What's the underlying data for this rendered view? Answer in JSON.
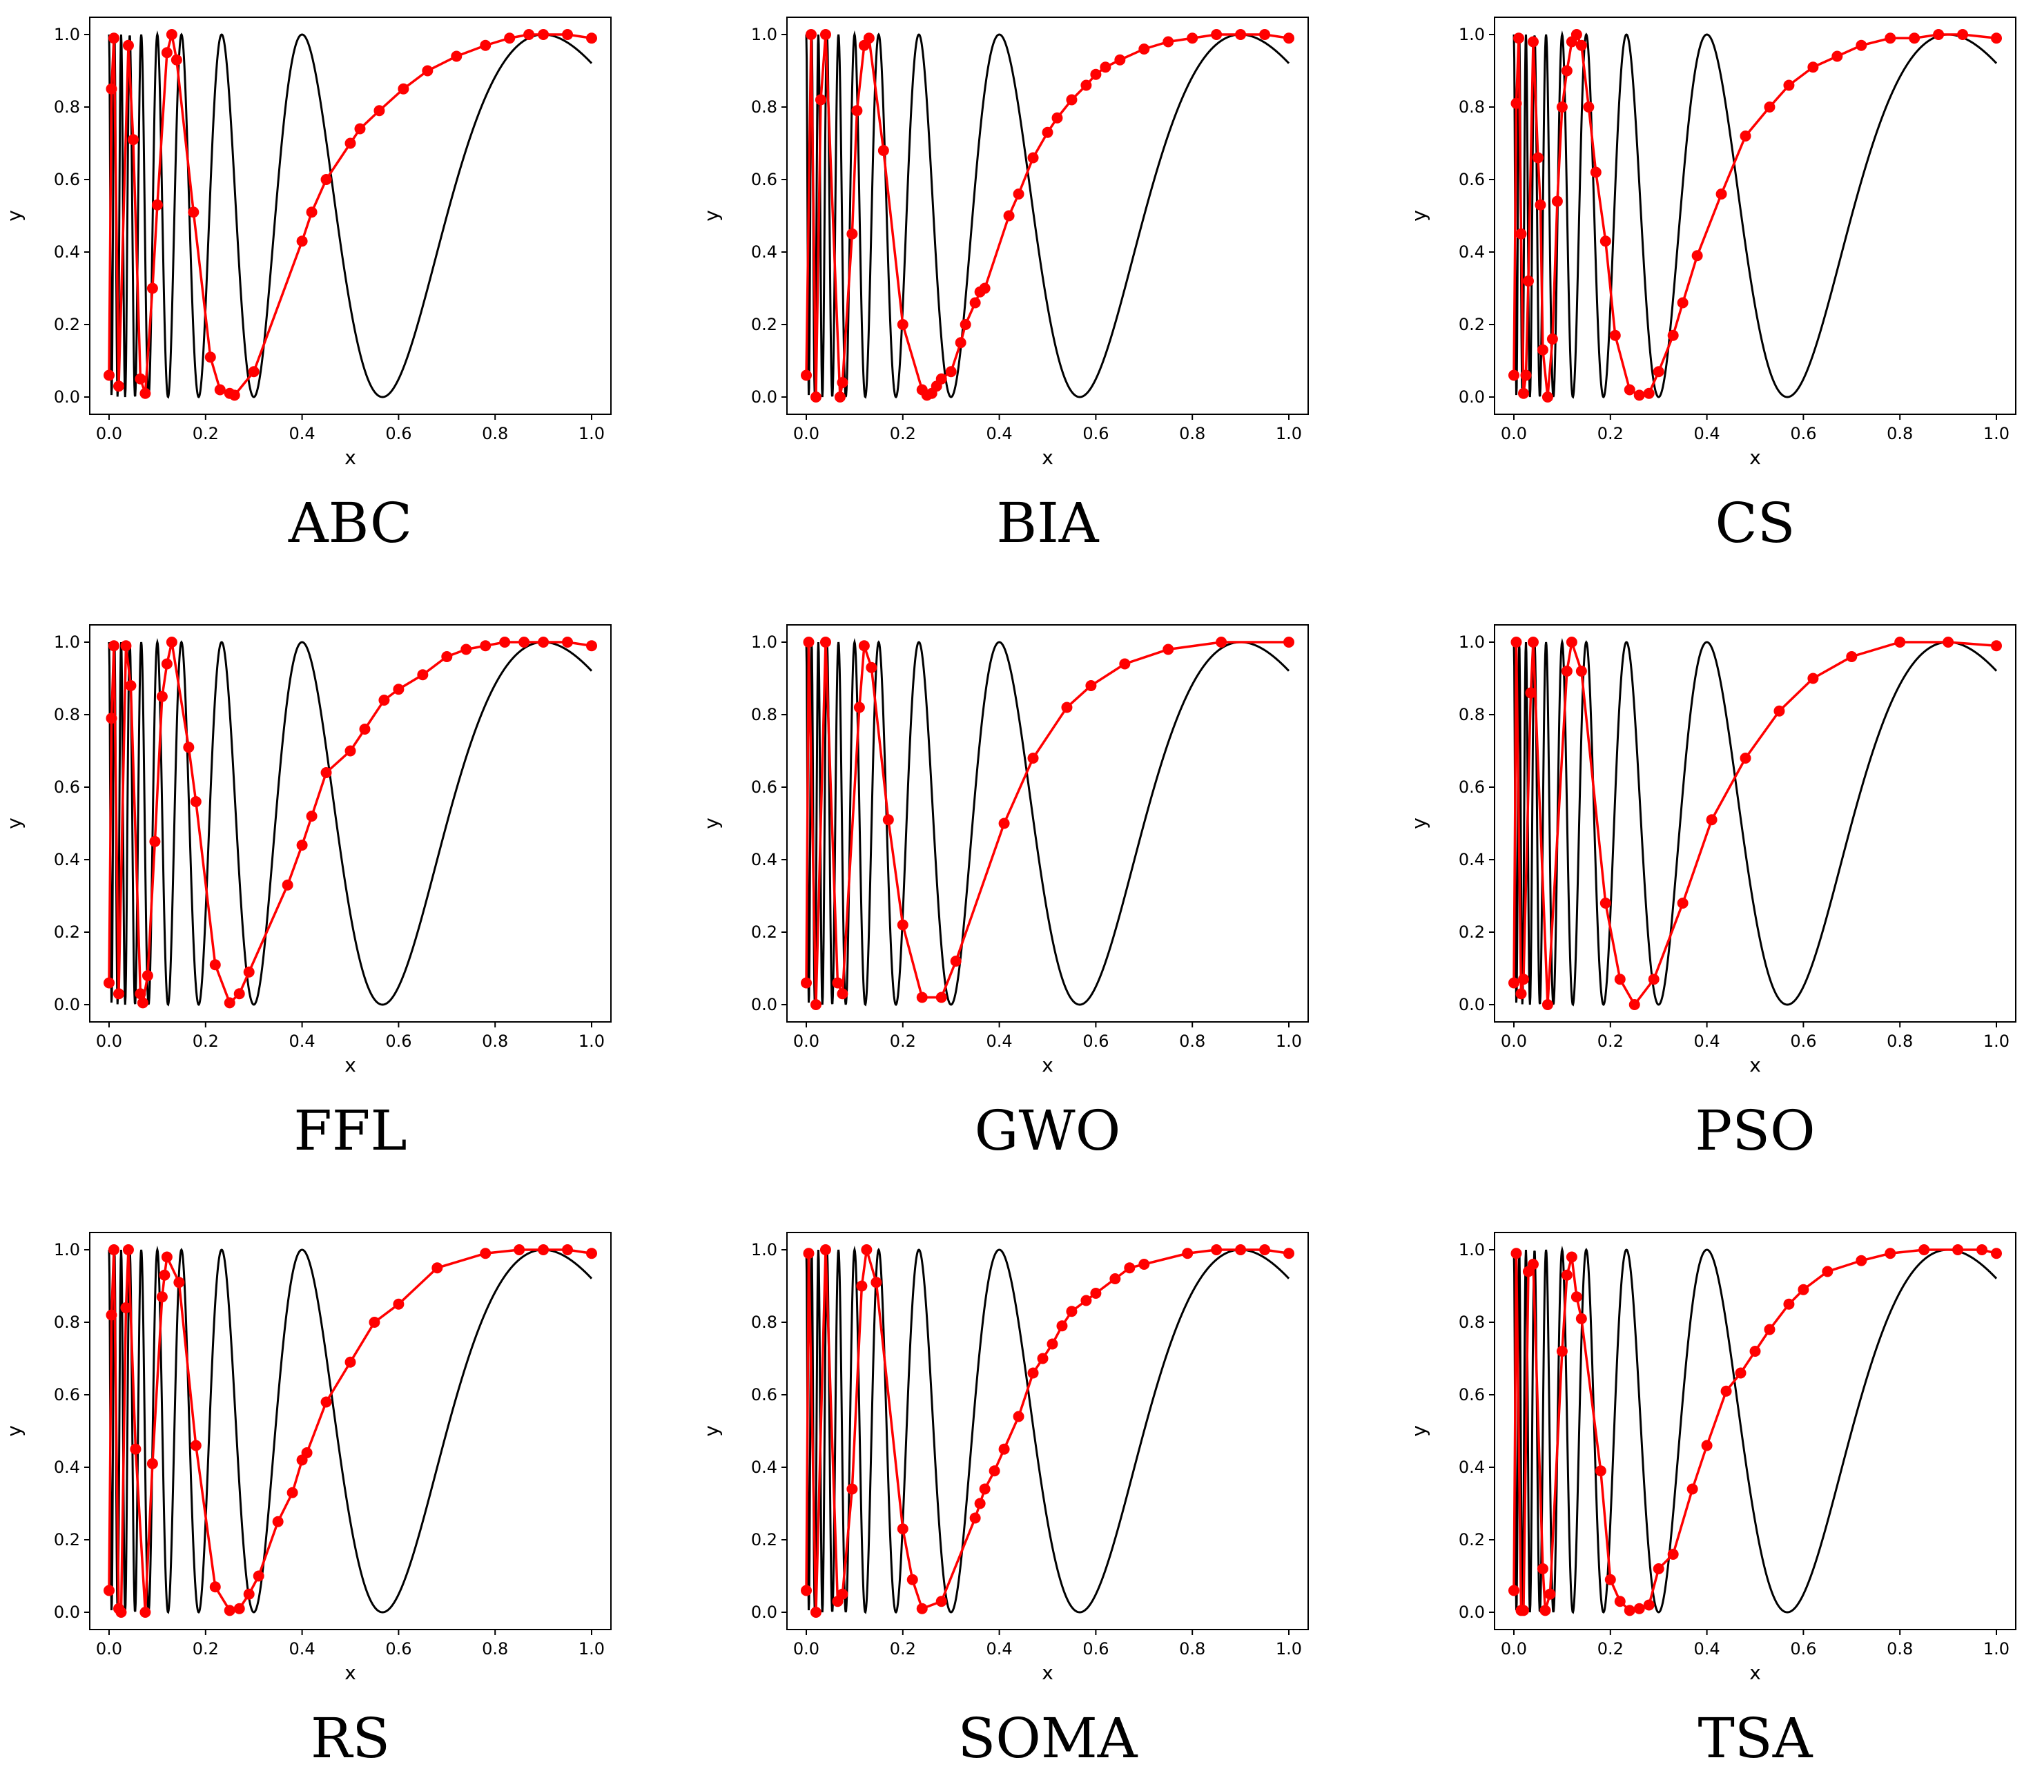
{
  "chart_data": [
    {
      "type": "line",
      "caption": "ABC",
      "xlabel": "x",
      "ylabel": "y",
      "xlim": [
        0,
        1
      ],
      "ylim": [
        0,
        1
      ],
      "xticks": [
        "0.0",
        "0.2",
        "0.4",
        "0.6",
        "0.8",
        "1.0"
      ],
      "yticks": [
        "0.0",
        "0.2",
        "0.4",
        "0.6",
        "0.8",
        "1.0"
      ],
      "colors": {
        "reference": "#000000",
        "approx": "#ff0000"
      },
      "x": [
        0.0,
        0.005,
        0.01,
        0.02,
        0.04,
        0.05,
        0.065,
        0.075,
        0.09,
        0.1,
        0.12,
        0.13,
        0.14,
        0.175,
        0.21,
        0.23,
        0.25,
        0.26,
        0.3,
        0.4,
        0.42,
        0.45,
        0.5,
        0.52,
        0.56,
        0.61,
        0.66,
        0.72,
        0.78,
        0.83,
        0.87,
        0.9,
        0.95,
        1.0
      ],
      "y": [
        0.06,
        0.85,
        0.99,
        0.03,
        0.97,
        0.71,
        0.05,
        0.01,
        0.3,
        0.53,
        0.95,
        1.0,
        0.93,
        0.51,
        0.11,
        0.02,
        0.01,
        0.005,
        0.07,
        0.43,
        0.51,
        0.6,
        0.7,
        0.74,
        0.79,
        0.85,
        0.9,
        0.94,
        0.97,
        0.99,
        1.0,
        1.0,
        1.0,
        0.99
      ]
    },
    {
      "type": "line",
      "caption": "BIA",
      "xlabel": "x",
      "ylabel": "y",
      "xlim": [
        0,
        1
      ],
      "ylim": [
        0,
        1
      ],
      "xticks": [
        "0.0",
        "0.2",
        "0.4",
        "0.6",
        "0.8",
        "1.0"
      ],
      "yticks": [
        "0.0",
        "0.2",
        "0.4",
        "0.6",
        "0.8",
        "1.0"
      ],
      "colors": {
        "reference": "#000000",
        "approx": "#ff0000"
      },
      "x": [
        0.0,
        0.01,
        0.02,
        0.03,
        0.04,
        0.07,
        0.075,
        0.095,
        0.105,
        0.12,
        0.13,
        0.16,
        0.2,
        0.24,
        0.25,
        0.26,
        0.27,
        0.28,
        0.3,
        0.32,
        0.33,
        0.35,
        0.36,
        0.37,
        0.42,
        0.44,
        0.47,
        0.5,
        0.52,
        0.55,
        0.58,
        0.6,
        0.62,
        0.65,
        0.7,
        0.75,
        0.8,
        0.85,
        0.9,
        0.95,
        1.0
      ],
      "y": [
        0.06,
        1.0,
        0.0,
        0.82,
        1.0,
        0.0,
        0.04,
        0.45,
        0.79,
        0.97,
        0.99,
        0.68,
        0.2,
        0.02,
        0.005,
        0.01,
        0.03,
        0.05,
        0.07,
        0.15,
        0.2,
        0.26,
        0.29,
        0.3,
        0.5,
        0.56,
        0.66,
        0.73,
        0.77,
        0.82,
        0.86,
        0.89,
        0.91,
        0.93,
        0.96,
        0.98,
        0.99,
        1.0,
        1.0,
        1.0,
        0.99
      ]
    },
    {
      "type": "line",
      "caption": "CS",
      "xlabel": "x",
      "ylabel": "y",
      "xlim": [
        0,
        1
      ],
      "ylim": [
        0,
        1
      ],
      "xticks": [
        "0.0",
        "0.2",
        "0.4",
        "0.6",
        "0.8",
        "1.0"
      ],
      "yticks": [
        "0.0",
        "0.2",
        "0.4",
        "0.6",
        "0.8",
        "1.0"
      ],
      "colors": {
        "reference": "#000000",
        "approx": "#ff0000"
      },
      "x": [
        0.0,
        0.005,
        0.01,
        0.015,
        0.02,
        0.025,
        0.03,
        0.04,
        0.05,
        0.055,
        0.06,
        0.07,
        0.08,
        0.09,
        0.1,
        0.11,
        0.12,
        0.13,
        0.14,
        0.155,
        0.17,
        0.19,
        0.21,
        0.24,
        0.26,
        0.28,
        0.3,
        0.33,
        0.35,
        0.38,
        0.43,
        0.48,
        0.53,
        0.57,
        0.62,
        0.67,
        0.72,
        0.78,
        0.83,
        0.88,
        0.93,
        1.0
      ],
      "y": [
        0.06,
        0.81,
        0.99,
        0.45,
        0.01,
        0.06,
        0.32,
        0.98,
        0.66,
        0.53,
        0.13,
        0.0,
        0.16,
        0.54,
        0.8,
        0.9,
        0.98,
        1.0,
        0.97,
        0.8,
        0.62,
        0.43,
        0.17,
        0.02,
        0.005,
        0.01,
        0.07,
        0.17,
        0.26,
        0.39,
        0.56,
        0.72,
        0.8,
        0.86,
        0.91,
        0.94,
        0.97,
        0.99,
        0.99,
        1.0,
        1.0,
        0.99
      ]
    },
    {
      "type": "line",
      "caption": "FFL",
      "xlabel": "x",
      "ylabel": "y",
      "xlim": [
        0,
        1
      ],
      "ylim": [
        0,
        1
      ],
      "xticks": [
        "0.0",
        "0.2",
        "0.4",
        "0.6",
        "0.8",
        "1.0"
      ],
      "yticks": [
        "0.0",
        "0.2",
        "0.4",
        "0.6",
        "0.8",
        "1.0"
      ],
      "colors": {
        "reference": "#000000",
        "approx": "#ff0000"
      },
      "x": [
        0.0,
        0.005,
        0.01,
        0.02,
        0.035,
        0.045,
        0.065,
        0.07,
        0.08,
        0.095,
        0.11,
        0.12,
        0.13,
        0.165,
        0.18,
        0.22,
        0.25,
        0.27,
        0.29,
        0.37,
        0.4,
        0.42,
        0.45,
        0.5,
        0.53,
        0.57,
        0.6,
        0.65,
        0.7,
        0.74,
        0.78,
        0.82,
        0.86,
        0.9,
        0.95,
        1.0
      ],
      "y": [
        0.06,
        0.79,
        0.99,
        0.03,
        0.99,
        0.88,
        0.03,
        0.005,
        0.08,
        0.45,
        0.85,
        0.94,
        1.0,
        0.71,
        0.56,
        0.11,
        0.005,
        0.03,
        0.09,
        0.33,
        0.44,
        0.52,
        0.64,
        0.7,
        0.76,
        0.84,
        0.87,
        0.91,
        0.96,
        0.98,
        0.99,
        1.0,
        1.0,
        1.0,
        1.0,
        0.99
      ]
    },
    {
      "type": "line",
      "caption": "GWO",
      "xlabel": "x",
      "ylabel": "y",
      "xlim": [
        0,
        1
      ],
      "ylim": [
        0,
        1
      ],
      "xticks": [
        "0.0",
        "0.2",
        "0.4",
        "0.6",
        "0.8",
        "1.0"
      ],
      "yticks": [
        "0.0",
        "0.2",
        "0.4",
        "0.6",
        "0.8",
        "1.0"
      ],
      "colors": {
        "reference": "#000000",
        "approx": "#ff0000"
      },
      "x": [
        0.0,
        0.005,
        0.02,
        0.04,
        0.065,
        0.075,
        0.11,
        0.12,
        0.135,
        0.17,
        0.2,
        0.24,
        0.28,
        0.31,
        0.41,
        0.47,
        0.54,
        0.59,
        0.66,
        0.75,
        0.86,
        1.0
      ],
      "y": [
        0.06,
        1.0,
        0.0,
        1.0,
        0.06,
        0.03,
        0.82,
        0.99,
        0.93,
        0.51,
        0.22,
        0.02,
        0.02,
        0.12,
        0.5,
        0.68,
        0.82,
        0.88,
        0.94,
        0.98,
        1.0,
        1.0
      ]
    },
    {
      "type": "line",
      "caption": "PSO",
      "xlabel": "x",
      "ylabel": "y",
      "xlim": [
        0,
        1
      ],
      "ylim": [
        0,
        1
      ],
      "xticks": [
        "0.0",
        "0.2",
        "0.4",
        "0.6",
        "0.8",
        "1.0"
      ],
      "yticks": [
        "0.0",
        "0.2",
        "0.4",
        "0.6",
        "0.8",
        "1.0"
      ],
      "colors": {
        "reference": "#000000",
        "approx": "#ff0000"
      },
      "x": [
        0.0,
        0.005,
        0.015,
        0.02,
        0.035,
        0.04,
        0.07,
        0.11,
        0.12,
        0.14,
        0.19,
        0.22,
        0.25,
        0.29,
        0.35,
        0.41,
        0.48,
        0.55,
        0.62,
        0.7,
        0.8,
        0.9,
        1.0
      ],
      "y": [
        0.06,
        1.0,
        0.03,
        0.07,
        0.86,
        1.0,
        0.0,
        0.92,
        1.0,
        0.92,
        0.28,
        0.07,
        0.0,
        0.07,
        0.28,
        0.51,
        0.68,
        0.81,
        0.9,
        0.96,
        1.0,
        1.0,
        0.99
      ]
    },
    {
      "type": "line",
      "caption": "RS",
      "xlabel": "x",
      "ylabel": "y",
      "xlim": [
        0,
        1
      ],
      "ylim": [
        0,
        1
      ],
      "xticks": [
        "0.0",
        "0.2",
        "0.4",
        "0.6",
        "0.8",
        "1.0"
      ],
      "yticks": [
        "0.0",
        "0.2",
        "0.4",
        "0.6",
        "0.8",
        "1.0"
      ],
      "colors": {
        "reference": "#000000",
        "approx": "#ff0000"
      },
      "x": [
        0.0,
        0.005,
        0.01,
        0.02,
        0.025,
        0.035,
        0.04,
        0.055,
        0.075,
        0.09,
        0.11,
        0.115,
        0.12,
        0.145,
        0.18,
        0.22,
        0.25,
        0.27,
        0.29,
        0.31,
        0.35,
        0.38,
        0.4,
        0.41,
        0.45,
        0.5,
        0.55,
        0.6,
        0.68,
        0.78,
        0.85,
        0.9,
        0.95,
        1.0
      ],
      "y": [
        0.06,
        0.82,
        1.0,
        0.01,
        0.0,
        0.84,
        1.0,
        0.45,
        0.0,
        0.41,
        0.87,
        0.93,
        0.98,
        0.91,
        0.46,
        0.07,
        0.005,
        0.01,
        0.05,
        0.1,
        0.25,
        0.33,
        0.42,
        0.44,
        0.58,
        0.69,
        0.8,
        0.85,
        0.95,
        0.99,
        1.0,
        1.0,
        1.0,
        0.99
      ]
    },
    {
      "type": "line",
      "caption": "SOMA",
      "xlabel": "x",
      "ylabel": "y",
      "xlim": [
        0,
        1
      ],
      "ylim": [
        0,
        1
      ],
      "xticks": [
        "0.0",
        "0.2",
        "0.4",
        "0.6",
        "0.8",
        "1.0"
      ],
      "yticks": [
        "0.0",
        "0.2",
        "0.4",
        "0.6",
        "0.8",
        "1.0"
      ],
      "colors": {
        "reference": "#000000",
        "approx": "#ff0000"
      },
      "x": [
        0.0,
        0.005,
        0.02,
        0.04,
        0.065,
        0.075,
        0.095,
        0.115,
        0.125,
        0.145,
        0.2,
        0.22,
        0.24,
        0.28,
        0.35,
        0.36,
        0.37,
        0.39,
        0.41,
        0.44,
        0.47,
        0.49,
        0.51,
        0.53,
        0.55,
        0.58,
        0.6,
        0.64,
        0.67,
        0.7,
        0.79,
        0.85,
        0.9,
        0.95,
        1.0
      ],
      "y": [
        0.06,
        0.99,
        0.0,
        1.0,
        0.03,
        0.05,
        0.34,
        0.9,
        1.0,
        0.91,
        0.23,
        0.09,
        0.01,
        0.03,
        0.26,
        0.3,
        0.34,
        0.39,
        0.45,
        0.54,
        0.66,
        0.7,
        0.74,
        0.79,
        0.83,
        0.86,
        0.88,
        0.92,
        0.95,
        0.96,
        0.99,
        1.0,
        1.0,
        1.0,
        0.99
      ]
    },
    {
      "type": "line",
      "caption": "TSA",
      "xlabel": "x",
      "ylabel": "y",
      "xlim": [
        0,
        1
      ],
      "ylim": [
        0,
        1
      ],
      "xticks": [
        "0.0",
        "0.2",
        "0.4",
        "0.6",
        "0.8",
        "1.0"
      ],
      "yticks": [
        "0.0",
        "0.2",
        "0.4",
        "0.6",
        "0.8",
        "1.0"
      ],
      "colors": {
        "reference": "#000000",
        "approx": "#ff0000"
      },
      "x": [
        0.0,
        0.005,
        0.015,
        0.02,
        0.03,
        0.04,
        0.06,
        0.065,
        0.075,
        0.1,
        0.11,
        0.12,
        0.13,
        0.14,
        0.18,
        0.2,
        0.22,
        0.24,
        0.26,
        0.28,
        0.3,
        0.33,
        0.37,
        0.4,
        0.44,
        0.47,
        0.5,
        0.53,
        0.57,
        0.6,
        0.65,
        0.72,
        0.78,
        0.85,
        0.92,
        0.97,
        1.0
      ],
      "y": [
        0.06,
        0.99,
        0.005,
        0.005,
        0.94,
        0.96,
        0.12,
        0.005,
        0.05,
        0.72,
        0.93,
        0.98,
        0.87,
        0.81,
        0.39,
        0.09,
        0.03,
        0.005,
        0.01,
        0.02,
        0.12,
        0.16,
        0.34,
        0.46,
        0.61,
        0.66,
        0.72,
        0.78,
        0.85,
        0.89,
        0.94,
        0.97,
        0.99,
        1.0,
        1.0,
        1.0,
        0.99
      ]
    }
  ]
}
